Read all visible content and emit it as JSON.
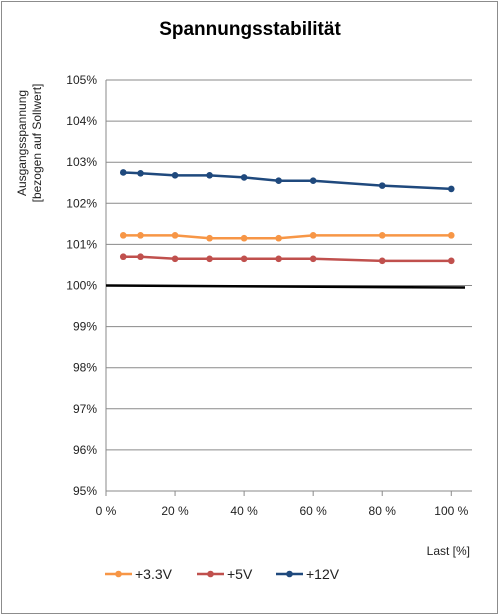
{
  "chart_data": {
    "type": "line",
    "title": "Spannungsstabilität",
    "xlabel": "Last [%]",
    "ylabel_lines": [
      "Ausgangsspannung",
      "[bezogen auf Sollwert]"
    ],
    "xlim": [
      0,
      106
    ],
    "ylim": [
      95,
      105
    ],
    "x_ticks": [
      0,
      20,
      40,
      60,
      80,
      100
    ],
    "x_tick_labels": [
      "0 %",
      "20 %",
      "40 %",
      "60 %",
      "80 %",
      "100 %"
    ],
    "y_ticks": [
      95,
      96,
      97,
      98,
      99,
      100,
      101,
      102,
      103,
      104,
      105
    ],
    "y_tick_labels": [
      "95%",
      "96%",
      "97%",
      "98%",
      "99%",
      "100%",
      "101%",
      "102%",
      "103%",
      "104%",
      "105%"
    ],
    "grid": "horizontal",
    "legend_position": "bottom",
    "reference_line": {
      "y_start": 100.0,
      "y_end": 99.95,
      "color": "#000000"
    },
    "series": [
      {
        "name": "+3.3V",
        "color": "#F79646",
        "x": [
          5,
          10,
          20,
          30,
          40,
          50,
          60,
          80,
          100
        ],
        "y": [
          101.22,
          101.22,
          101.22,
          101.15,
          101.15,
          101.15,
          101.22,
          101.22,
          101.22
        ]
      },
      {
        "name": "+5V",
        "color": "#C0504D",
        "x": [
          5,
          10,
          20,
          30,
          40,
          50,
          60,
          80,
          100
        ],
        "y": [
          100.7,
          100.7,
          100.65,
          100.65,
          100.65,
          100.65,
          100.65,
          100.6,
          100.6
        ]
      },
      {
        "name": "+12V",
        "color": "#1F497D",
        "x": [
          5,
          10,
          20,
          30,
          40,
          50,
          60,
          80,
          100
        ],
        "y": [
          102.75,
          102.73,
          102.68,
          102.68,
          102.63,
          102.55,
          102.55,
          102.43,
          102.35
        ]
      }
    ]
  }
}
